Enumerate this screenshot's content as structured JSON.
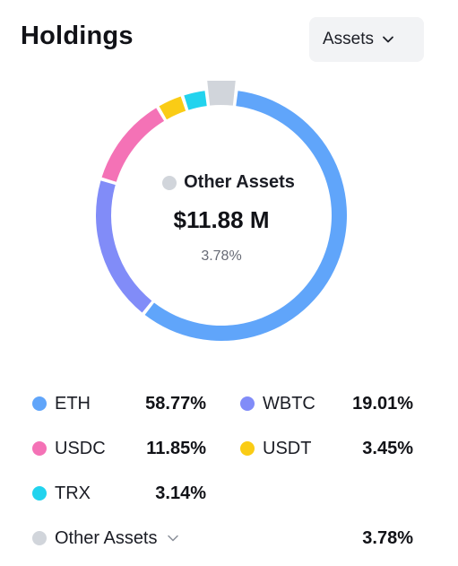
{
  "header": {
    "title": "Holdings",
    "dropdown_label": "Assets"
  },
  "center": {
    "label": "Other Assets",
    "value": "$11.88 M",
    "percent": "3.78%"
  },
  "legend": [
    {
      "name": "ETH",
      "percent": "58.77%",
      "color": "#60a5fa"
    },
    {
      "name": "WBTC",
      "percent": "19.01%",
      "color": "#818cf8"
    },
    {
      "name": "USDC",
      "percent": "11.85%",
      "color": "#f472b6"
    },
    {
      "name": "USDT",
      "percent": "3.45%",
      "color": "#facc15"
    },
    {
      "name": "TRX",
      "percent": "3.14%",
      "color": "#22d3ee"
    }
  ],
  "other": {
    "name": "Other Assets",
    "percent": "3.78%",
    "color": "#d1d5db"
  },
  "chart_data": {
    "type": "pie",
    "categories": [
      "ETH",
      "WBTC",
      "USDC",
      "USDT",
      "TRX",
      "Other Assets"
    ],
    "values": [
      58.77,
      19.01,
      11.85,
      3.45,
      3.14,
      3.78
    ],
    "highlighted": "Other Assets"
  }
}
